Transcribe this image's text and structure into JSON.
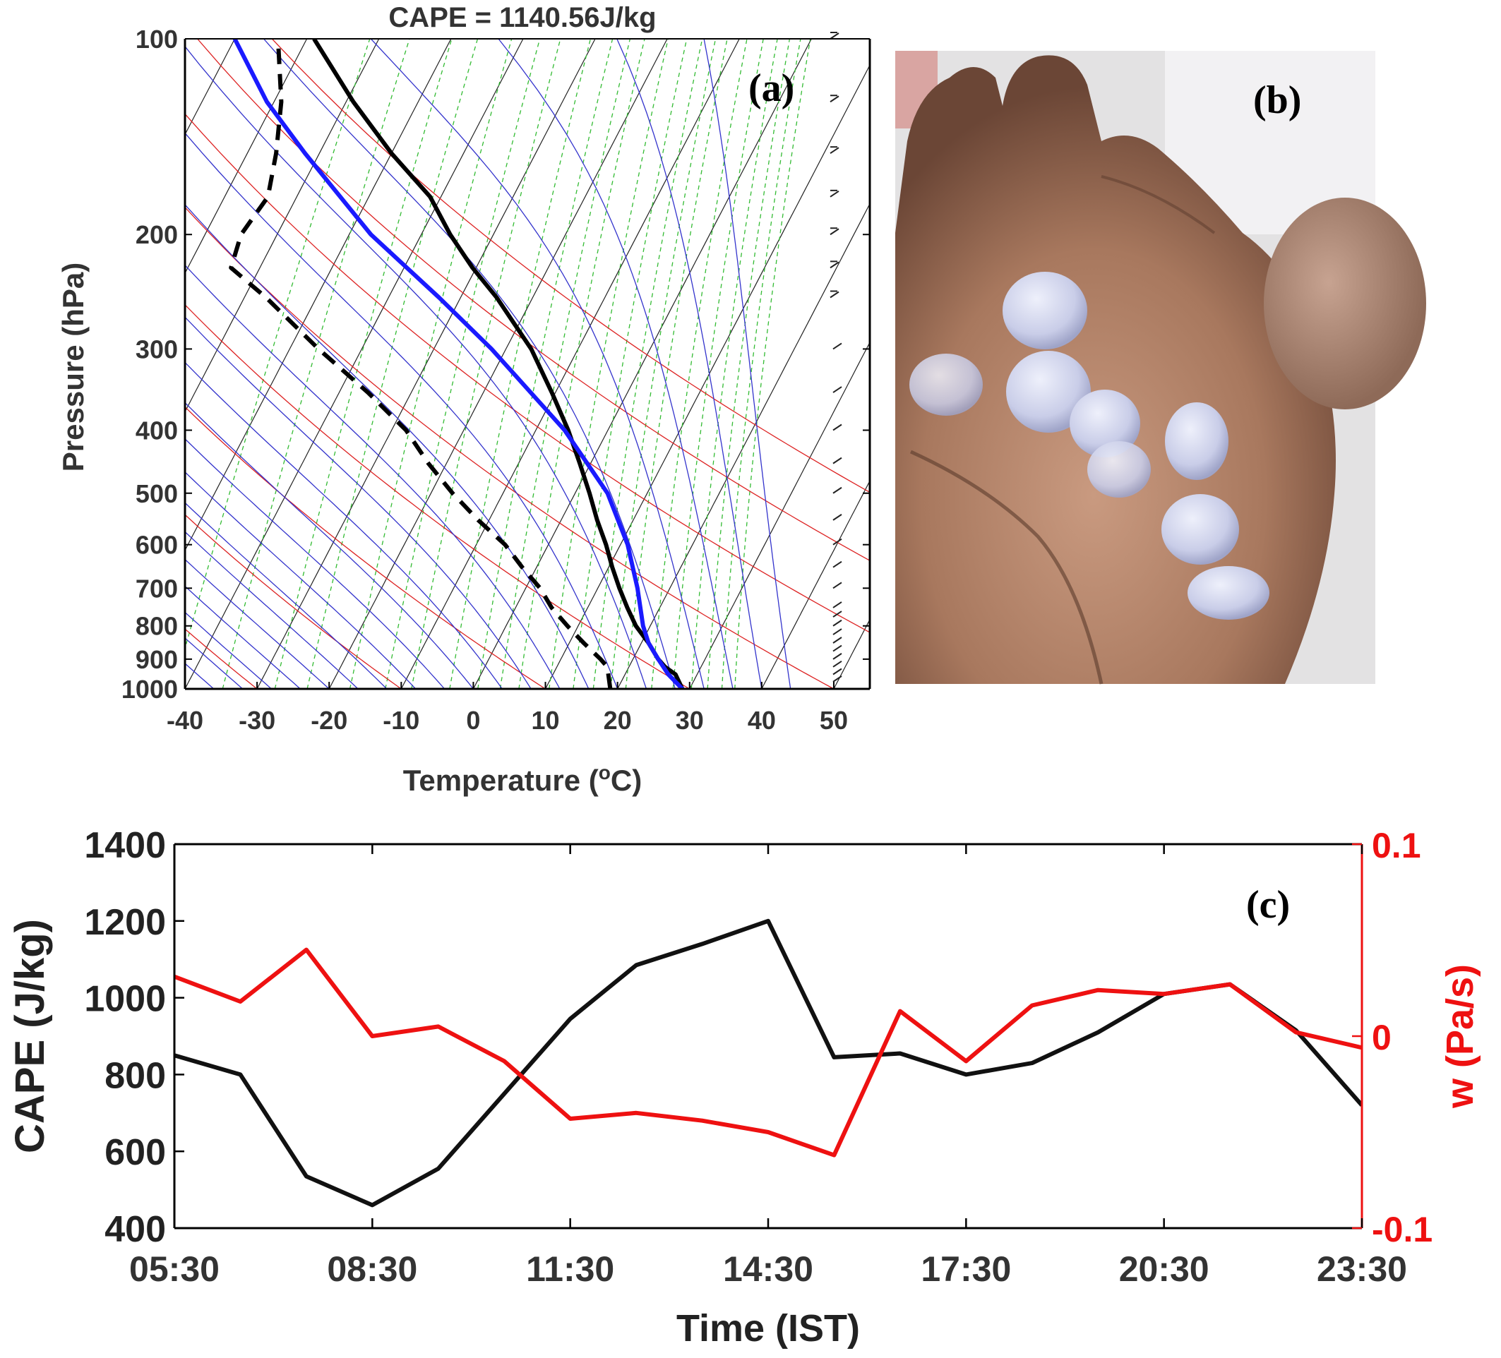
{
  "panel_a": {
    "label": "(a)",
    "title": "CAPE = 1140.56J/kg",
    "xlabel": "Temperature (°C)",
    "ylabel": "Pressure (hPa)",
    "x_ticks": [
      "-40",
      "-30",
      "-20",
      "-10",
      "0",
      "10",
      "20",
      "30",
      "40",
      "50"
    ],
    "y_ticks": [
      "100",
      "200",
      "300",
      "400",
      "500",
      "600",
      "700",
      "800",
      "900",
      "1000"
    ]
  },
  "panel_b": {
    "label": "(b)"
  },
  "panel_c": {
    "label": "(c)"
  },
  "colors": {
    "temperature": "#000000",
    "dewpoint": "#000000",
    "parcel": "#1a1aff",
    "dry_adiabat": "#dd2222",
    "isotherm": "#222222",
    "moist_adiabat": "#3333cc",
    "mixing_ratio": "#33bb33",
    "cape": "#111111",
    "w": "#ee1111"
  },
  "chart_data": [
    {
      "type": "line",
      "name": "skew-T log-P sounding",
      "title": "CAPE = 1140.56J/kg",
      "xlabel": "Temperature (°C)",
      "ylabel": "Pressure (hPa)",
      "xlim": [
        -40,
        55
      ],
      "ylim": [
        1000,
        100
      ],
      "y_scale": "log",
      "skewed_x": true,
      "series": [
        {
          "style": "solid",
          "points": [
            [
              1000,
              29
            ],
            [
              950,
              27
            ],
            [
              925,
              25
            ],
            [
              900,
              23.5
            ],
            [
              850,
              21
            ],
            [
              800,
              18
            ],
            [
              750,
              15.5
            ],
            [
              700,
              13
            ],
            [
              650,
              10.5
            ],
            [
              600,
              8
            ],
            [
              550,
              5
            ],
            [
              500,
              2
            ],
            [
              450,
              -1.5
            ],
            [
              400,
              -5.5
            ],
            [
              350,
              -10.5
            ],
            [
              300,
              -16.5
            ],
            [
              250,
              -25
            ],
            [
              225,
              -30.5
            ],
            [
              200,
              -36
            ],
            [
              175,
              -41.5
            ],
            [
              150,
              -50
            ],
            [
              125,
              -59
            ],
            [
              100,
              -69
            ]
          ]
        },
        {
          "style": "dashed",
          "points": [
            [
              1000,
              19
            ],
            [
              925,
              17
            ],
            [
              900,
              15.5
            ],
            [
              850,
              12
            ],
            [
              800,
              8.5
            ],
            [
              750,
              5
            ],
            [
              700,
              2
            ],
            [
              650,
              -2
            ],
            [
              600,
              -6
            ],
            [
              550,
              -11.5
            ],
            [
              500,
              -17
            ],
            [
              450,
              -22.5
            ],
            [
              400,
              -28
            ],
            [
              350,
              -36
            ],
            [
              300,
              -46
            ],
            [
              250,
              -57
            ],
            [
              225,
              -64
            ],
            [
              200,
              -65
            ],
            [
              175,
              -64
            ],
            [
              150,
              -66
            ],
            [
              125,
              -69
            ],
            [
              100,
              -74
            ]
          ]
        },
        {
          "style": "solid",
          "points": [
            [
              1000,
              29
            ],
            [
              950,
              26
            ],
            [
              900,
              23.5
            ],
            [
              850,
              21
            ],
            [
              800,
              19
            ],
            [
              700,
              15.5
            ],
            [
              600,
              11
            ],
            [
              500,
              4.5
            ],
            [
              400,
              -6
            ],
            [
              300,
              -22
            ],
            [
              250,
              -33
            ],
            [
              200,
              -47
            ],
            [
              150,
              -62
            ],
            [
              125,
              -71
            ],
            [
              100,
              -80
            ]
          ]
        }
      ],
      "wind_barbs": "right column",
      "grid": true
    },
    {
      "type": "line",
      "xlabel": "Time (IST)",
      "ylabel": "CAPE (J/kg)",
      "y2label": "w (Pa/s)",
      "x": [
        "05:30",
        "06:30",
        "07:30",
        "08:30",
        "09:30",
        "10:30",
        "11:30",
        "12:30",
        "13:30",
        "14:30",
        "15:30",
        "16:30",
        "17:30",
        "18:30",
        "19:30",
        "20:30",
        "21:30",
        "22:30",
        "23:30"
      ],
      "x_ticks": [
        "05:30",
        "08:30",
        "11:30",
        "14:30",
        "17:30",
        "20:30",
        "23:30"
      ],
      "ylim": [
        400,
        1400
      ],
      "y_ticks": [
        "400",
        "600",
        "800",
        "1000",
        "1200",
        "1400"
      ],
      "y2lim": [
        -0.1,
        0.1
      ],
      "y2_ticks": [
        "-0.1",
        "0",
        "0.1"
      ],
      "series": [
        {
          "axis": "left",
          "values": [
            850,
            800,
            535,
            460,
            555,
            750,
            945,
            1085,
            1140,
            1200,
            845,
            855,
            800,
            830,
            910,
            1010,
            1035,
            915,
            720
          ]
        },
        {
          "axis": "right",
          "values": [
            0.031,
            0.018,
            0.045,
            0.0,
            0.005,
            -0.013,
            -0.043,
            -0.04,
            -0.044,
            -0.05,
            -0.062,
            0.013,
            -0.013,
            0.016,
            0.024,
            0.022,
            0.027,
            0.002,
            -0.006
          ]
        }
      ],
      "grid": false
    }
  ]
}
